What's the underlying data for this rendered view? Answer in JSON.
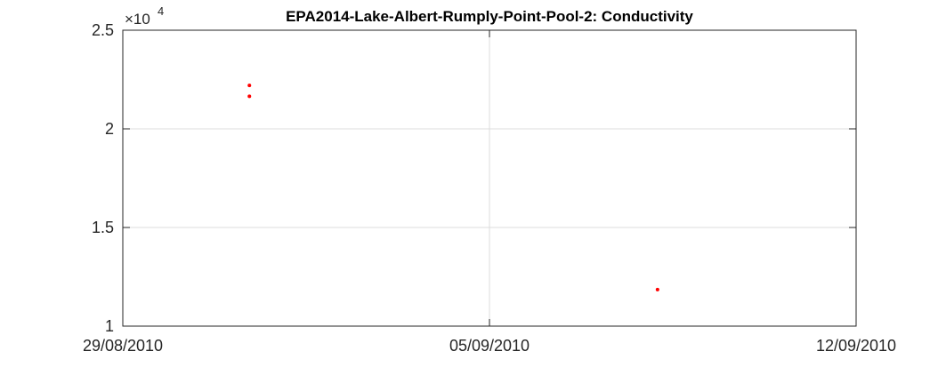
{
  "chart_data": {
    "type": "scatter",
    "title": "EPA2014-Lake-Albert-Rumply-Point-Pool-2: Conductivity",
    "xlabel": "",
    "ylabel": "",
    "x_tick_labels": [
      "29/08/2010",
      "05/09/2010",
      "12/09/2010"
    ],
    "y_tick_labels": [
      "1",
      "1.5",
      "2",
      "2.5"
    ],
    "y_tick_values": [
      1,
      1.5,
      2,
      2.5
    ],
    "y_multiplier_base": "×10",
    "y_multiplier_exponent": "4",
    "xlim": [
      "29/08/2010",
      "12/09/2010"
    ],
    "ylim": [
      10000,
      25000
    ],
    "grid": true,
    "series": [
      {
        "color": "#ff0000",
        "points": [
          {
            "x": "31/08/2010 10:00",
            "y": 22200
          },
          {
            "x": "31/08/2010 10:00",
            "y": 21650
          },
          {
            "x": "08/09/2010 05:00",
            "y": 11850
          }
        ]
      }
    ]
  }
}
